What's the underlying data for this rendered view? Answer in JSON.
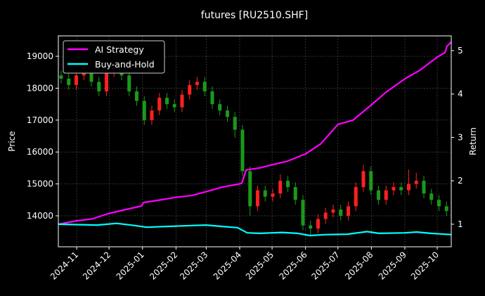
{
  "chart_data": {
    "type": "candlestick+line",
    "title": "futures [RU2510.SHF]",
    "ylabel": "Price",
    "y2label": "Return",
    "ylim": [
      13030,
      19640
    ],
    "y2lim": [
      0.48,
      5.34
    ],
    "xlim": [
      "2024-10-15",
      "2025-10-14"
    ],
    "grid": true,
    "legend_position": "top-left",
    "x_ticks": [
      "2024-11",
      "2024-12",
      "2025-01",
      "2025-02",
      "2025-03",
      "2025-04",
      "2025-05",
      "2025-06",
      "2025-07",
      "2025-08",
      "2025-09",
      "2025-10"
    ],
    "y_ticks": [
      14000,
      15000,
      16000,
      17000,
      18000,
      19000
    ],
    "y2_ticks": [
      1,
      2,
      3,
      4,
      5
    ],
    "colors": {
      "up": "#ff2020",
      "down": "#1a9a1a",
      "strategy": "#ff00ff",
      "buyhold": "#00ffff",
      "background": "#000000",
      "grid": "#555555"
    },
    "candles_ohlc": [
      [
        "2024-10-15",
        18400,
        18550,
        18150,
        18300
      ],
      [
        "2024-10-22",
        18300,
        18450,
        17950,
        18100
      ],
      [
        "2024-10-29",
        18100,
        18550,
        17950,
        18400
      ],
      [
        "2024-11-05",
        18400,
        18750,
        18250,
        18600
      ],
      [
        "2024-11-12",
        18600,
        18750,
        18050,
        18200
      ],
      [
        "2024-11-19",
        18200,
        18350,
        17750,
        17900
      ],
      [
        "2024-11-26",
        17900,
        18650,
        17750,
        18500
      ],
      [
        "2024-12-03",
        18500,
        19050,
        18350,
        18900
      ],
      [
        "2024-12-10",
        18900,
        19050,
        18250,
        18400
      ],
      [
        "2024-12-17",
        18400,
        18550,
        17750,
        17900
      ],
      [
        "2024-12-24",
        17900,
        18050,
        17450,
        17600
      ],
      [
        "2024-12-31",
        17600,
        17750,
        16850,
        17000
      ],
      [
        "2025-01-07",
        17000,
        17450,
        16850,
        17300
      ],
      [
        "2025-01-14",
        17300,
        17850,
        17150,
        17700
      ],
      [
        "2025-01-21",
        17700,
        17850,
        17350,
        17500
      ],
      [
        "2025-01-28",
        17500,
        17650,
        17250,
        17400
      ],
      [
        "2025-02-04",
        17400,
        17950,
        17250,
        17800
      ],
      [
        "2025-02-11",
        17800,
        18250,
        17650,
        18100
      ],
      [
        "2025-02-18",
        18100,
        18350,
        17950,
        18200
      ],
      [
        "2025-02-25",
        18200,
        18350,
        17750,
        17900
      ],
      [
        "2025-03-04",
        17900,
        18050,
        17350,
        17500
      ],
      [
        "2025-03-11",
        17500,
        17650,
        17150,
        17300
      ],
      [
        "2025-03-18",
        17300,
        17450,
        16950,
        17100
      ],
      [
        "2025-03-25",
        17100,
        17250,
        16450,
        16700
      ],
      [
        "2025-04-01",
        16700,
        16850,
        15250,
        15400
      ],
      [
        "2025-04-08",
        15400,
        15550,
        14000,
        14300
      ],
      [
        "2025-04-15",
        14300,
        14950,
        14150,
        14800
      ],
      [
        "2025-04-22",
        14800,
        14950,
        14450,
        14600
      ],
      [
        "2025-04-29",
        14600,
        14850,
        14450,
        14700
      ],
      [
        "2025-05-06",
        14700,
        15300,
        14550,
        15100
      ],
      [
        "2025-05-13",
        15100,
        15250,
        14750,
        14900
      ],
      [
        "2025-05-20",
        14900,
        15050,
        14350,
        14500
      ],
      [
        "2025-05-27",
        14500,
        14650,
        13550,
        13700
      ],
      [
        "2025-06-03",
        13700,
        13850,
        13400,
        13600
      ],
      [
        "2025-06-10",
        13600,
        14050,
        13450,
        13900
      ],
      [
        "2025-06-17",
        13900,
        14250,
        13750,
        14100
      ],
      [
        "2025-06-24",
        14100,
        14350,
        13950,
        14200
      ],
      [
        "2025-07-01",
        14200,
        14350,
        13850,
        14000
      ],
      [
        "2025-07-08",
        14000,
        14450,
        13850,
        14300
      ],
      [
        "2025-07-15",
        14300,
        15050,
        14150,
        14900
      ],
      [
        "2025-07-22",
        14900,
        15600,
        14750,
        15400
      ],
      [
        "2025-07-29",
        15400,
        15550,
        14650,
        14800
      ],
      [
        "2025-08-05",
        14800,
        14950,
        14350,
        14500
      ],
      [
        "2025-08-12",
        14500,
        14950,
        14350,
        14800
      ],
      [
        "2025-08-19",
        14800,
        15050,
        14650,
        14900
      ],
      [
        "2025-08-26",
        14900,
        15050,
        14650,
        14800
      ],
      [
        "2025-09-02",
        14800,
        15450,
        14650,
        15000
      ],
      [
        "2025-09-09",
        15000,
        15350,
        14850,
        15100
      ],
      [
        "2025-09-16",
        15100,
        15250,
        14550,
        14700
      ],
      [
        "2025-09-23",
        14700,
        14850,
        14350,
        14500
      ],
      [
        "2025-09-30",
        14500,
        14650,
        14150,
        14300
      ],
      [
        "2025-10-07",
        14300,
        14450,
        14000,
        14150
      ]
    ],
    "series": [
      {
        "name": "AI Strategy",
        "axis": "right",
        "points": [
          [
            "2024-10-15",
            1.0
          ],
          [
            "2024-11-01",
            1.08
          ],
          [
            "2024-11-15",
            1.12
          ],
          [
            "2024-12-01",
            1.25
          ],
          [
            "2024-12-15",
            1.33
          ],
          [
            "2024-12-31",
            1.42
          ],
          [
            "2025-01-02",
            1.5
          ],
          [
            "2025-01-15",
            1.55
          ],
          [
            "2025-02-01",
            1.62
          ],
          [
            "2025-02-15",
            1.66
          ],
          [
            "2025-03-01",
            1.75
          ],
          [
            "2025-03-15",
            1.85
          ],
          [
            "2025-04-01",
            1.93
          ],
          [
            "2025-04-03",
            1.95
          ],
          [
            "2025-04-07",
            2.25
          ],
          [
            "2025-04-20",
            2.3
          ],
          [
            "2025-05-01",
            2.37
          ],
          [
            "2025-05-15",
            2.45
          ],
          [
            "2025-06-01",
            2.62
          ],
          [
            "2025-06-15",
            2.85
          ],
          [
            "2025-07-01",
            3.3
          ],
          [
            "2025-07-15",
            3.4
          ],
          [
            "2025-08-01",
            3.75
          ],
          [
            "2025-08-15",
            4.05
          ],
          [
            "2025-09-01",
            4.35
          ],
          [
            "2025-09-15",
            4.55
          ],
          [
            "2025-10-01",
            4.85
          ],
          [
            "2025-10-08",
            4.95
          ],
          [
            "2025-10-10",
            5.1
          ],
          [
            "2025-10-14",
            5.2
          ]
        ]
      },
      {
        "name": "Buy-and-Hold",
        "axis": "right",
        "points": [
          [
            "2024-10-15",
            1.0
          ],
          [
            "2024-11-01",
            0.99
          ],
          [
            "2024-11-20",
            0.98
          ],
          [
            "2024-12-08",
            1.02
          ],
          [
            "2024-12-25",
            0.97
          ],
          [
            "2025-01-05",
            0.93
          ],
          [
            "2025-01-25",
            0.95
          ],
          [
            "2025-02-15",
            0.97
          ],
          [
            "2025-03-01",
            0.98
          ],
          [
            "2025-03-15",
            0.95
          ],
          [
            "2025-03-30",
            0.92
          ],
          [
            "2025-04-08",
            0.8
          ],
          [
            "2025-04-20",
            0.79
          ],
          [
            "2025-05-10",
            0.81
          ],
          [
            "2025-05-25",
            0.79
          ],
          [
            "2025-06-05",
            0.74
          ],
          [
            "2025-06-20",
            0.76
          ],
          [
            "2025-07-10",
            0.77
          ],
          [
            "2025-07-28",
            0.83
          ],
          [
            "2025-08-08",
            0.79
          ],
          [
            "2025-09-01",
            0.8
          ],
          [
            "2025-09-12",
            0.82
          ],
          [
            "2025-09-25",
            0.79
          ],
          [
            "2025-10-14",
            0.76
          ]
        ]
      }
    ]
  }
}
